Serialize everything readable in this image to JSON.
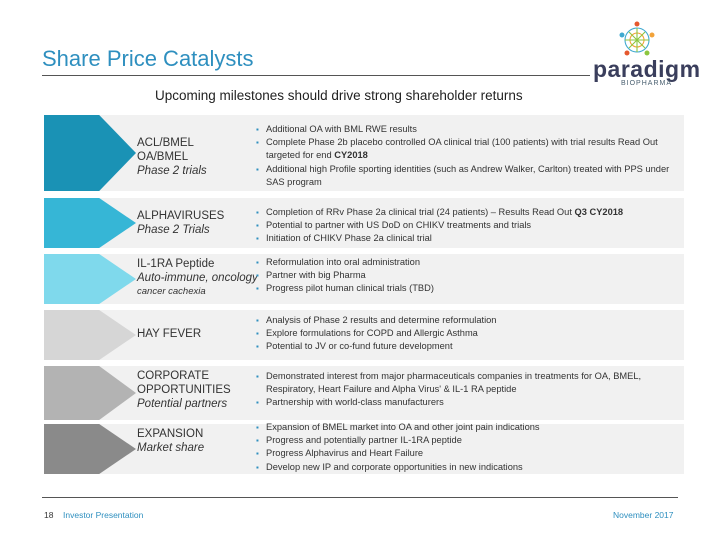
{
  "header": {
    "title": "Share Price Catalysts",
    "subtitle": "Upcoming milestones should drive strong shareholder returns"
  },
  "logo": {
    "name": "paradigm",
    "tagline": "BIOPHARMA"
  },
  "rows": [
    {
      "color": "#1a92b5",
      "label_lines": [
        "ACL/BMEL",
        "OA/BMEL"
      ],
      "sub": "Phase 2 trials",
      "note": "",
      "bullets": [
        [
          "Additional OA with BML RWE results",
          ""
        ],
        [
          "Complete Phase 2b placebo controlled OA clinical trial (100 patients) with trial results Read Out targeted for end ",
          "CY2018"
        ],
        [
          "Additional high Profile sporting identities (such as Andrew Walker, Carlton) treated with PPS under SAS program",
          ""
        ]
      ]
    },
    {
      "color": "#36b6d6",
      "label_lines": [
        "ALPHAVIRUSES"
      ],
      "sub": "Phase 2 Trials",
      "note": "",
      "bullets": [
        [
          "Completion of RRv Phase 2a clinical trial (24 patients) –  Results Read Out ",
          "Q3 CY2018"
        ],
        [
          "Potential to partner with US DoD on CHIKV treatments and trials",
          ""
        ],
        [
          "Initiation of CHIKV Phase 2a clinical trial",
          ""
        ]
      ]
    },
    {
      "color": "#7fd9ec",
      "label_lines": [
        "IL-1RA Peptide"
      ],
      "sub": "Auto-immune, oncology",
      "note": "cancer cachexia",
      "bullets": [
        [
          "Reformulation into oral administration",
          ""
        ],
        [
          "Partner with big Pharma",
          ""
        ],
        [
          "Progress pilot human clinical trials (TBD)",
          ""
        ]
      ]
    },
    {
      "color": "#d6d6d6",
      "label_lines": [
        "HAY FEVER"
      ],
      "sub": "",
      "note": "",
      "bullets": [
        [
          "Analysis of Phase 2 results and determine reformulation",
          ""
        ],
        [
          "Explore formulations for COPD and Allergic Asthma",
          ""
        ],
        [
          "Potential to JV or co-fund future development",
          ""
        ]
      ]
    },
    {
      "color": "#b3b3b3",
      "label_lines": [
        "CORPORATE",
        "OPPORTUNITIES"
      ],
      "sub": "Potential partners",
      "note": "",
      "bullets": [
        [
          "Demonstrated interest from major pharmaceuticals companies in treatments for OA, BMEL, Respiratory, Heart Failure and Alpha Virus' & IL-1 RA peptide",
          ""
        ],
        [
          "Partnership with world-class manufacturers",
          ""
        ]
      ]
    },
    {
      "color": "#8a8a8a",
      "label_lines": [
        "EXPANSION"
      ],
      "sub": "Market share",
      "note": "",
      "bullets": [
        [
          "Expansion of BMEL market into OA and other joint pain indications",
          ""
        ],
        [
          "Progress and potentially partner IL-1RA peptide",
          ""
        ],
        [
          "Progress Alphavirus and Heart Failure",
          ""
        ],
        [
          "Develop new IP and corporate opportunities in new indications",
          ""
        ]
      ]
    }
  ],
  "footer": {
    "page": "18",
    "left": "Investor Presentation",
    "right": "November 2017"
  }
}
